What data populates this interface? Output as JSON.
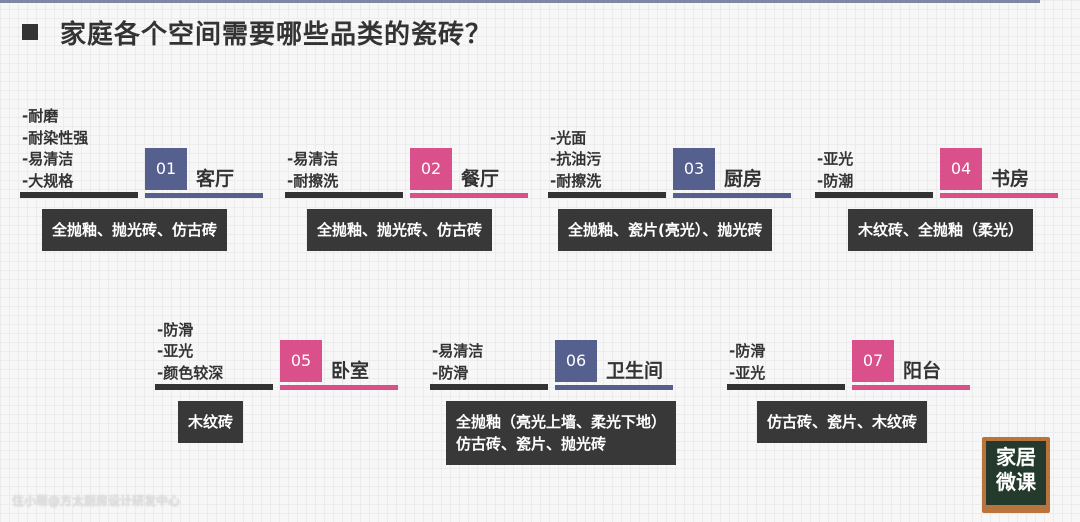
{
  "title": "家庭各个空间需要哪些品类的瓷砖？",
  "colors": {
    "blue": "#56608f",
    "pink": "#d9508a",
    "dark": "#383838"
  },
  "rooms": [
    {
      "num": "01",
      "name": "客厅",
      "color": "blue",
      "tags": [
        "-耐磨",
        "-耐染性强",
        "-易清洁",
        "-大规格"
      ],
      "tiles": [
        "全抛釉、抛光砖、仿古砖"
      ]
    },
    {
      "num": "02",
      "name": "餐厅",
      "color": "pink",
      "tags": [
        "-易清洁",
        "-耐擦洗"
      ],
      "tiles": [
        "全抛釉、抛光砖、仿古砖"
      ]
    },
    {
      "num": "03",
      "name": "厨房",
      "color": "blue",
      "tags": [
        "-光面",
        "-抗油污",
        "-耐擦洗"
      ],
      "tiles": [
        "全抛釉、瓷片(亮光）、抛光砖"
      ]
    },
    {
      "num": "04",
      "name": "书房",
      "color": "pink",
      "tags": [
        "-亚光",
        "-防潮"
      ],
      "tiles": [
        "木纹砖、全抛釉（柔光）"
      ]
    },
    {
      "num": "05",
      "name": "卧室",
      "color": "pink",
      "tags": [
        "-防滑",
        "-亚光",
        "-颜色较深"
      ],
      "tiles": [
        "木纹砖"
      ]
    },
    {
      "num": "06",
      "name": "卫生间",
      "color": "blue",
      "tags": [
        "-易清洁",
        "-防滑"
      ],
      "tiles": [
        "全抛釉（亮光上墙、柔光下地）",
        "仿古砖、瓷片、抛光砖"
      ]
    },
    {
      "num": "07",
      "name": "阳台",
      "color": "pink",
      "tags": [
        "-防滑",
        "-亚光"
      ],
      "tiles": [
        "仿古砖、瓷片、木纹砖"
      ]
    }
  ],
  "watermark": "住小帮@方太厨房设计研发中心",
  "logo": {
    "line1": "家居",
    "line2": "微课"
  }
}
